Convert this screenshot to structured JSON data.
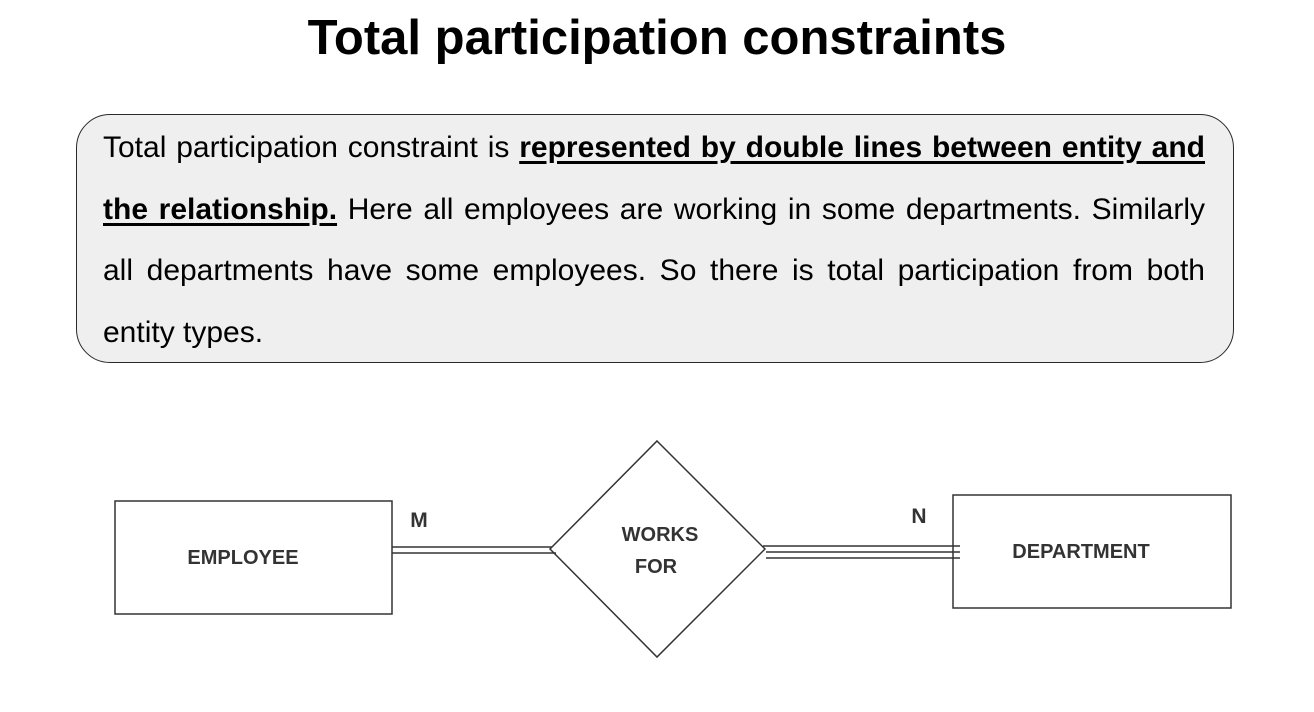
{
  "slide": {
    "title": "Total participation constraints"
  },
  "description": {
    "text_before": "Total participation constraint is ",
    "emphasis": "represented by double lines between entity and the relationship.",
    "text_after": " Here all employees are working in some departments. Similarly all departments have some employees. So there is total participation from both entity types."
  },
  "diagram": {
    "entities": [
      {
        "name": "EMPLOYEE"
      },
      {
        "name": "DEPARTMENT"
      }
    ],
    "relationship": {
      "line1": "WORKS",
      "line2": "FOR"
    },
    "cardinality": {
      "left": "M",
      "right": "N"
    },
    "colors": {
      "box_fill": "#efefef",
      "line": "#333333"
    }
  }
}
